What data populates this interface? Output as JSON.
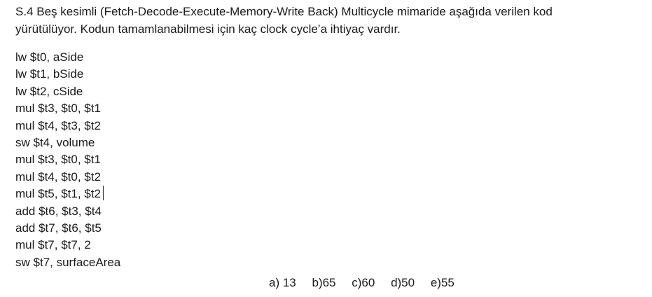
{
  "question": {
    "line1": "S.4 Beş kesimli (Fetch-Decode-Execute-Memory-Write Back) Multicycle mimaride aşağıda verilen kod",
    "line2": "yürütülüyor. Kodun tamamlanabilmesi için kaç clock cycle’a ihtiyaç vardır."
  },
  "code": [
    "lw $t0, aSide",
    "lw $t1, bSide",
    "lw $t2, cSide",
    "mul $t3, $t0, $t1",
    "mul $t4, $t3, $t2",
    "sw $t4, volume",
    "mul $t3, $t0, $t1",
    "mul $t4, $t0, $t2",
    "mul $t5, $t1, $t2",
    "add $t6, $t3, $t4",
    "add $t7, $t6, $t5",
    "mul $t7, $t7, 2",
    "sw $t7, surfaceArea"
  ],
  "answers": [
    "a) 13",
    "b)65",
    "c)60",
    "d)50",
    "e)55"
  ]
}
